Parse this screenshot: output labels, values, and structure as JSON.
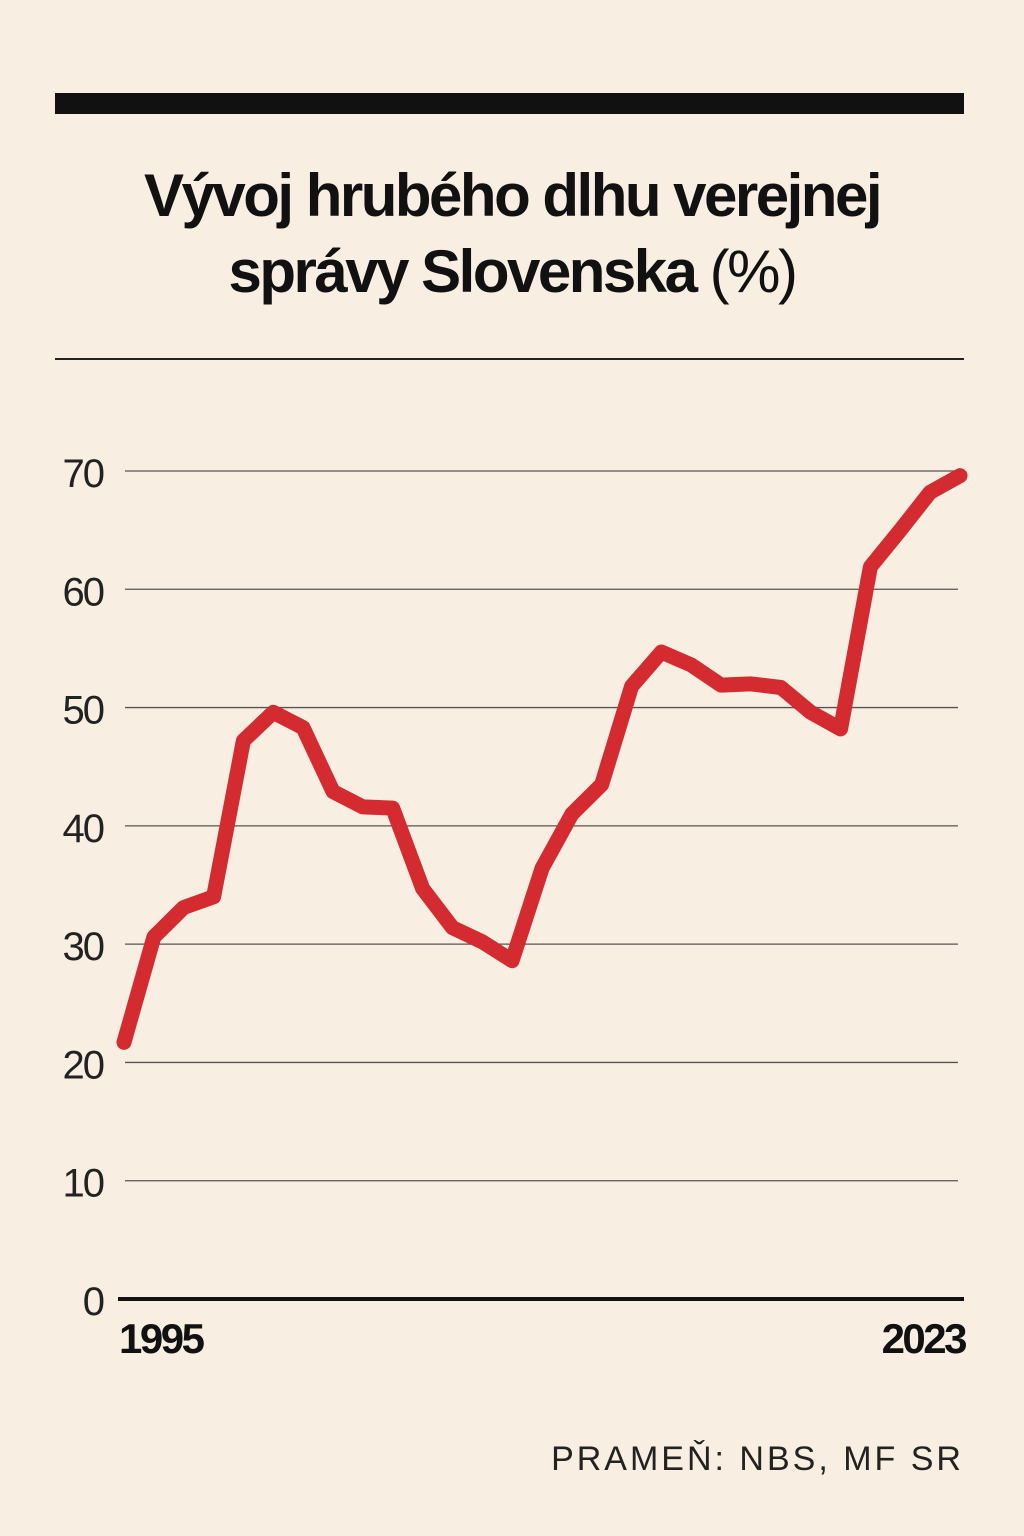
{
  "title": {
    "line1": "Vývoj hrubého dlhu verejnej",
    "line2": "správy Slovenska",
    "unit": "(%)"
  },
  "source": "PRAMEŇ: NBS, MF SR",
  "chart_data": {
    "type": "line",
    "title": "Vývoj hrubého dlhu verejnej správy Slovenska (%)",
    "xlabel": "",
    "ylabel": "",
    "xlim": [
      1995,
      2023
    ],
    "ylim": [
      0,
      70
    ],
    "yticks": [
      0,
      10,
      20,
      30,
      40,
      50,
      60,
      70
    ],
    "xtick_labels": [
      {
        "x": 1995,
        "label": "1995"
      },
      {
        "x": 2023,
        "label": "2023"
      }
    ],
    "grid": "horizontal",
    "line_color": "#d32b2f",
    "series": [
      {
        "x": [
          1995,
          1996,
          1997,
          1998,
          1999,
          2000,
          2001,
          2002,
          2003,
          2004,
          2005,
          2006,
          2007,
          2008,
          2009,
          2010,
          2011,
          2012,
          2013,
          2014,
          2015,
          2016,
          2017,
          2018,
          2019,
          2020,
          2021,
          2022,
          2023
        ],
        "values": [
          21.7,
          30.6,
          33.1,
          34.0,
          47.2,
          49.6,
          48.3,
          42.9,
          41.6,
          41.5,
          34.7,
          31.4,
          30.2,
          28.6,
          36.4,
          41.0,
          43.5,
          51.8,
          54.7,
          53.6,
          51.9,
          52.0,
          51.7,
          49.6,
          48.2,
          61.9,
          65.0,
          68.2,
          69.6
        ]
      }
    ]
  }
}
